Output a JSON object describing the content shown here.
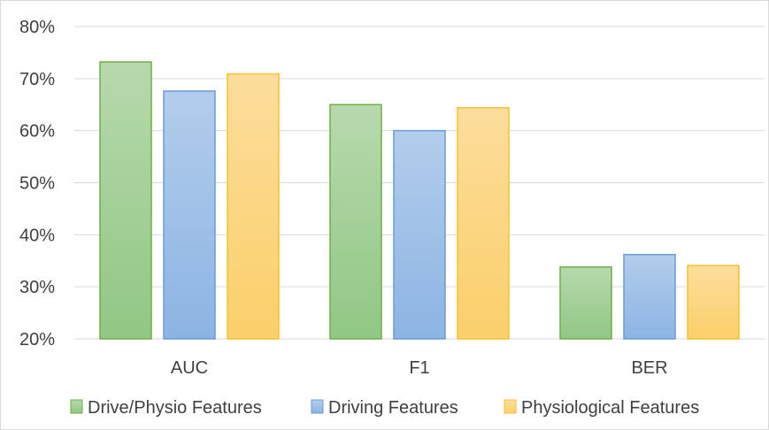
{
  "chart_data": {
    "type": "bar",
    "categories": [
      "AUC",
      "F1",
      "BER"
    ],
    "series": [
      {
        "name": "Drive/Physio Features",
        "values": [
          73.2,
          65.0,
          33.8
        ]
      },
      {
        "name": "Driving Features",
        "values": [
          67.6,
          60.0,
          36.2
        ]
      },
      {
        "name": "Physiological Features",
        "values": [
          70.9,
          64.4,
          34.1
        ]
      }
    ],
    "y_ticks": [
      "20%",
      "30%",
      "40%",
      "50%",
      "60%",
      "70%",
      "80%"
    ],
    "ylim": [
      20,
      80
    ],
    "grid": true,
    "legend_position": "bottom",
    "title": "",
    "xlabel": "",
    "ylabel": ""
  },
  "colors": {
    "series_fill_top": [
      "#b7d9ad",
      "#b3cdec",
      "#fcdd9c"
    ],
    "series_fill_bottom": [
      "#91c784",
      "#8cb4e3",
      "#fbcf6a"
    ],
    "series_stroke": [
      "#70ad47",
      "#6d9ad8",
      "#f2c230"
    ],
    "grid": "#d9d9d9",
    "text": "#404040"
  }
}
